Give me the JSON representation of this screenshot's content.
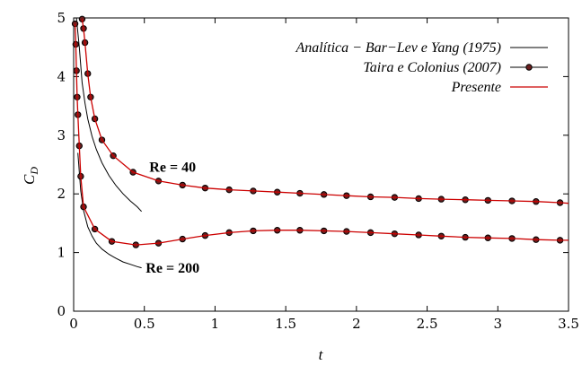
{
  "chart_data": {
    "type": "line",
    "xlabel": "t",
    "ylabel": "C",
    "ylabel_sub": "D",
    "xlim": [
      0,
      3.5
    ],
    "ylim": [
      0,
      5
    ],
    "xticks": [
      0,
      0.5,
      1,
      1.5,
      2,
      2.5,
      3,
      3.5
    ],
    "xtick_labels": [
      "0",
      "0.5",
      "1",
      "1.5",
      "2",
      "2.5",
      "3",
      "3.5"
    ],
    "yticks": [
      0,
      1,
      2,
      3,
      4,
      5
    ],
    "ytick_labels": [
      "0",
      "1",
      "2",
      "3",
      "4",
      "5"
    ],
    "grid": false,
    "legend_position": "top-right",
    "colors": {
      "analytic": "#000000",
      "taira": "#000000",
      "presente": "#cc0000",
      "marker": "#000000",
      "marker_fill": "#6b1e1e"
    },
    "series": [
      {
        "name": "Analítica − Bar−Lev e Yang (1975)",
        "style": "line",
        "group": "Re = 40",
        "x": [
          0.02,
          0.04,
          0.06,
          0.08,
          0.1,
          0.13,
          0.16,
          0.2,
          0.25,
          0.3,
          0.35,
          0.4,
          0.45,
          0.48
        ],
        "y": [
          5.0,
          4.5,
          3.9,
          3.55,
          3.28,
          2.98,
          2.76,
          2.53,
          2.31,
          2.14,
          2.0,
          1.88,
          1.78,
          1.7
        ]
      },
      {
        "name": "Analítica − Bar−Lev e Yang (1975)",
        "style": "line",
        "group": "Re = 200",
        "x": [
          0.03,
          0.05,
          0.07,
          0.1,
          0.13,
          0.16,
          0.2,
          0.25,
          0.3,
          0.35,
          0.4,
          0.45,
          0.48
        ],
        "y": [
          2.7,
          2.05,
          1.72,
          1.44,
          1.28,
          1.16,
          1.06,
          0.97,
          0.9,
          0.84,
          0.8,
          0.76,
          0.74
        ]
      },
      {
        "name": "Taira e Colonius (2007)",
        "style": "markers",
        "group": "Re = 40",
        "x": [
          0.06,
          0.07,
          0.08,
          0.1,
          0.12,
          0.15,
          0.2,
          0.28,
          0.42,
          0.6,
          0.77,
          0.93,
          1.1,
          1.27,
          1.44,
          1.6,
          1.77,
          1.93,
          2.1,
          2.27,
          2.44,
          2.6,
          2.77,
          2.93,
          3.1,
          3.27,
          3.44
        ],
        "y": [
          4.98,
          4.82,
          4.58,
          4.05,
          3.65,
          3.28,
          2.92,
          2.65,
          2.37,
          2.22,
          2.15,
          2.1,
          2.07,
          2.05,
          2.03,
          2.01,
          1.99,
          1.97,
          1.95,
          1.94,
          1.92,
          1.91,
          1.9,
          1.89,
          1.88,
          1.87,
          1.85
        ]
      },
      {
        "name": "Taira e Colonius (2007)",
        "style": "markers",
        "group": "Re = 200",
        "x": [
          0.01,
          0.015,
          0.02,
          0.025,
          0.03,
          0.04,
          0.05,
          0.07,
          0.15,
          0.27,
          0.44,
          0.6,
          0.77,
          0.93,
          1.1,
          1.27,
          1.44,
          1.6,
          1.77,
          1.93,
          2.1,
          2.27,
          2.44,
          2.6,
          2.77,
          2.93,
          3.1,
          3.27,
          3.44
        ],
        "y": [
          4.9,
          4.55,
          4.1,
          3.65,
          3.35,
          2.82,
          2.3,
          1.78,
          1.4,
          1.19,
          1.13,
          1.16,
          1.23,
          1.29,
          1.34,
          1.37,
          1.38,
          1.38,
          1.37,
          1.36,
          1.34,
          1.32,
          1.3,
          1.28,
          1.26,
          1.25,
          1.24,
          1.22,
          1.21
        ]
      },
      {
        "name": "Presente",
        "style": "line",
        "group": "Re = 40",
        "x": [
          0.06,
          0.07,
          0.08,
          0.1,
          0.12,
          0.15,
          0.2,
          0.28,
          0.42,
          0.6,
          0.77,
          0.93,
          1.1,
          1.27,
          1.44,
          1.6,
          1.77,
          1.93,
          2.1,
          2.27,
          2.44,
          2.6,
          2.77,
          2.93,
          3.1,
          3.27,
          3.44,
          3.5
        ],
        "y": [
          4.98,
          4.82,
          4.58,
          4.05,
          3.65,
          3.28,
          2.92,
          2.65,
          2.37,
          2.22,
          2.15,
          2.1,
          2.07,
          2.05,
          2.03,
          2.01,
          1.99,
          1.97,
          1.95,
          1.94,
          1.92,
          1.91,
          1.9,
          1.89,
          1.88,
          1.87,
          1.85,
          1.84
        ]
      },
      {
        "name": "Presente",
        "style": "line",
        "group": "Re = 200",
        "x": [
          0.01,
          0.015,
          0.02,
          0.025,
          0.03,
          0.04,
          0.05,
          0.07,
          0.15,
          0.27,
          0.44,
          0.6,
          0.77,
          0.93,
          1.1,
          1.27,
          1.44,
          1.6,
          1.77,
          1.93,
          2.1,
          2.27,
          2.44,
          2.6,
          2.77,
          2.93,
          3.1,
          3.27,
          3.44,
          3.5
        ],
        "y": [
          4.9,
          4.55,
          4.1,
          3.65,
          3.35,
          2.82,
          2.3,
          1.78,
          1.4,
          1.19,
          1.13,
          1.16,
          1.23,
          1.29,
          1.34,
          1.37,
          1.38,
          1.38,
          1.37,
          1.36,
          1.34,
          1.32,
          1.3,
          1.28,
          1.26,
          1.25,
          1.24,
          1.22,
          1.21,
          1.21
        ]
      }
    ],
    "legend": [
      {
        "label": "Analítica − Bar−Lev e Yang (1975)",
        "kind": "analytic"
      },
      {
        "label": "Taira e Colonius (2007)",
        "kind": "taira"
      },
      {
        "label": "Presente",
        "kind": "presente"
      }
    ],
    "annotations": [
      {
        "text": "Re = 40",
        "x": 0.7,
        "y": 2.38
      },
      {
        "text": "Re = 200",
        "x": 0.7,
        "y": 0.66
      }
    ]
  }
}
